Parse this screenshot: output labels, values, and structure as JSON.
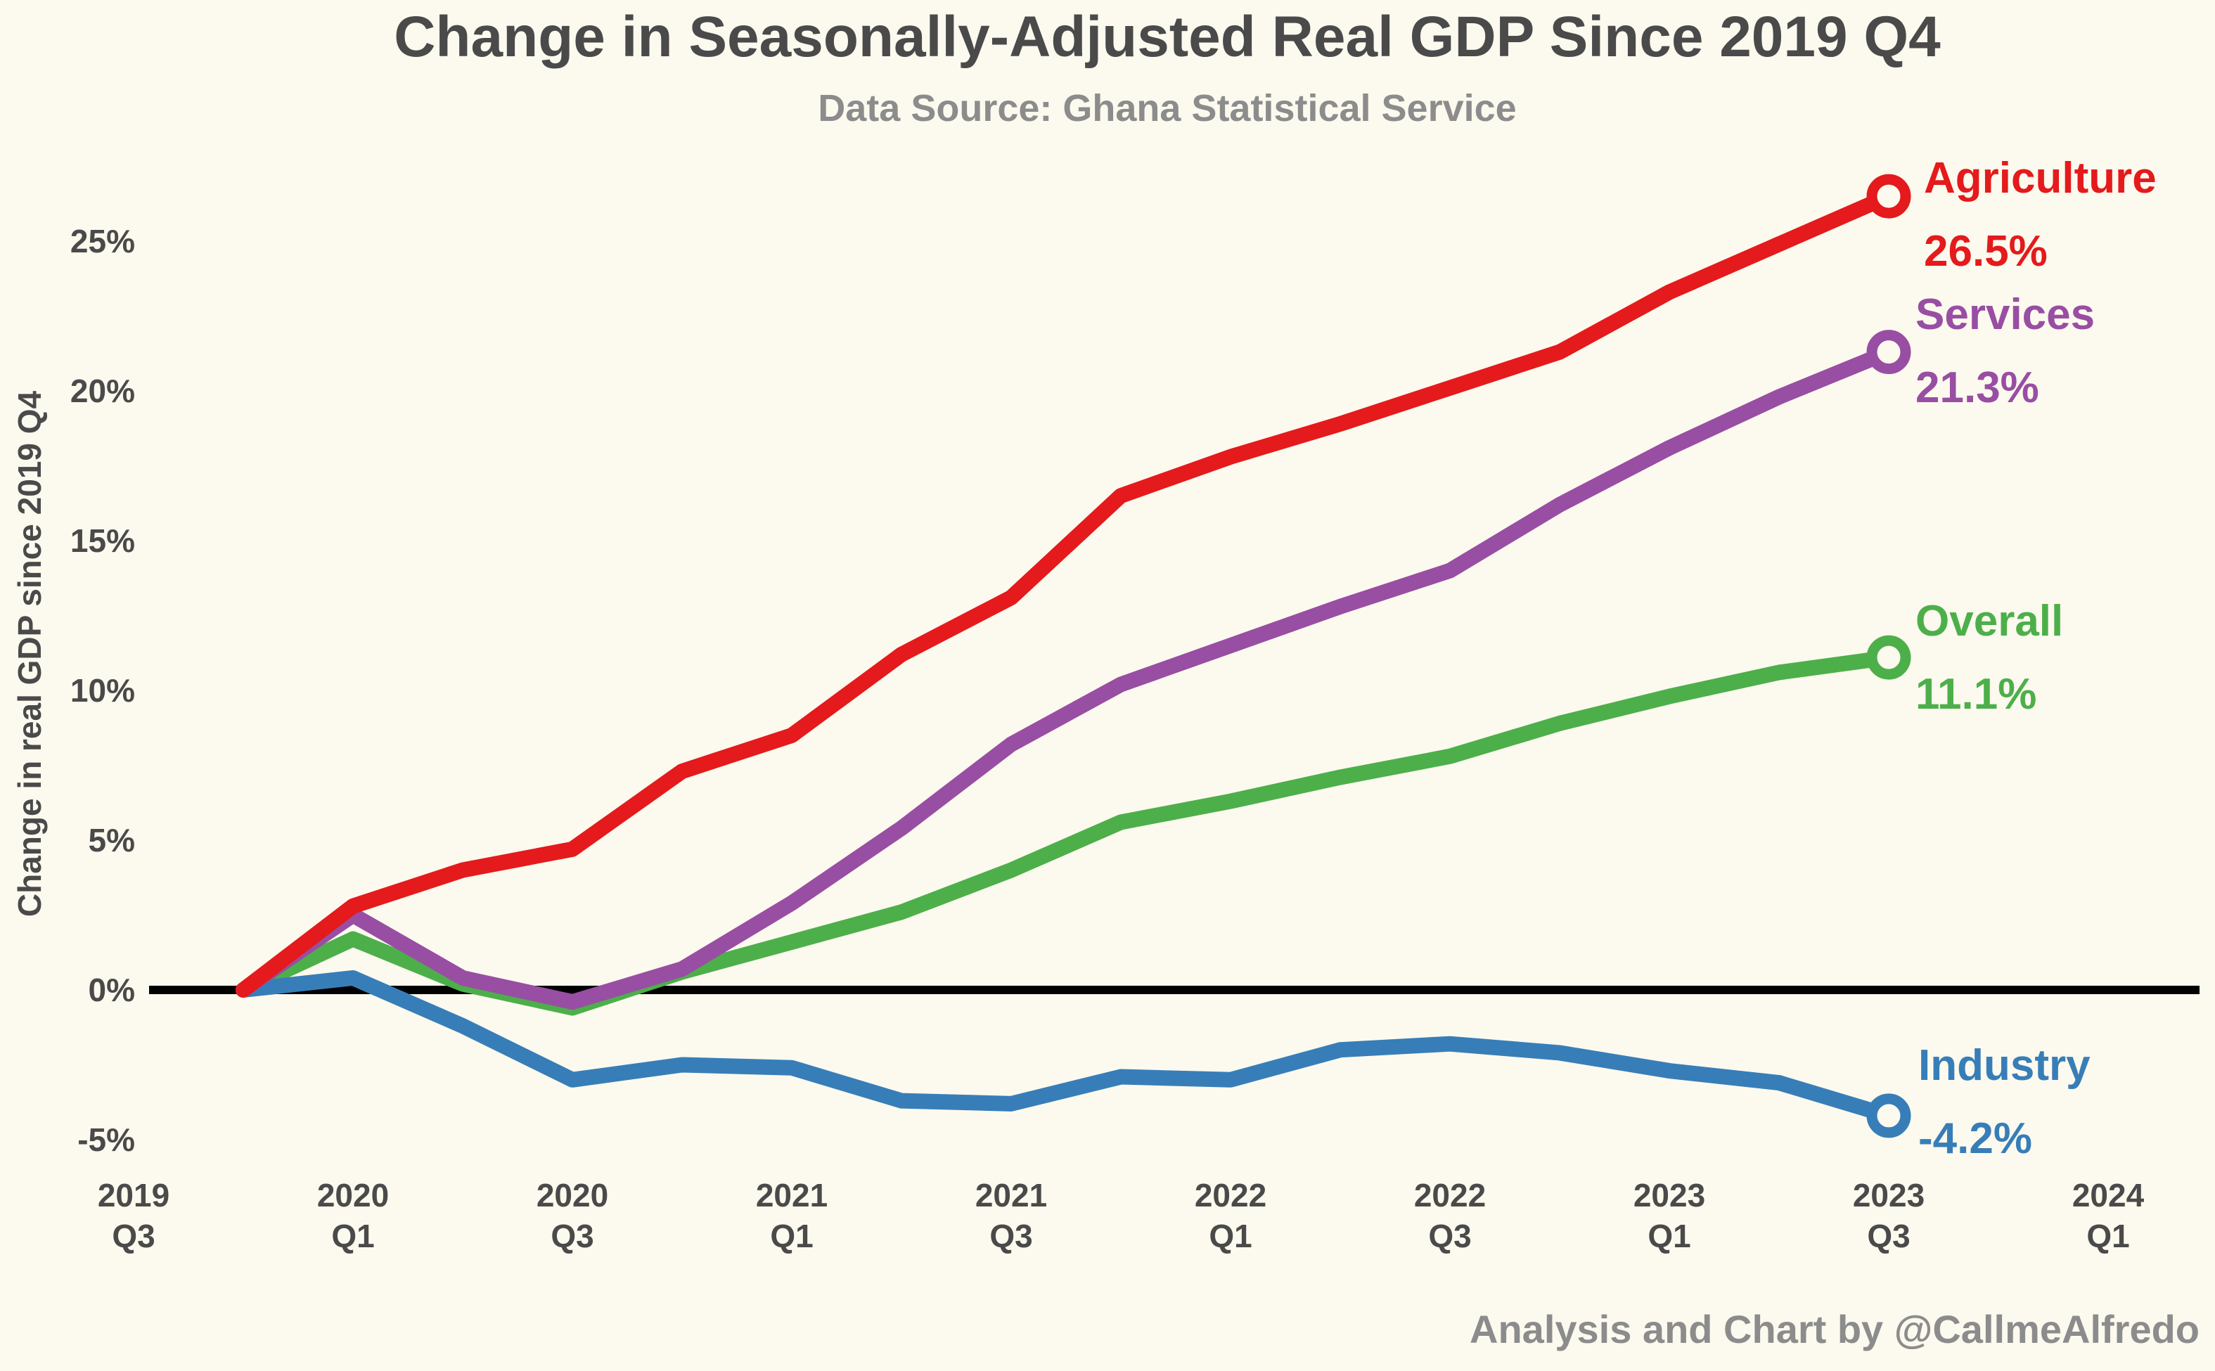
{
  "chart_data": {
    "type": "line",
    "title": "Change in Seasonally-Adjusted Real GDP Since 2019 Q4",
    "subtitle": "Data Source: Ghana Statistical Service",
    "ylabel": "Change in real GDP since 2019 Q4",
    "xlabel": "",
    "credit": "Analysis and Chart by @CallmeAlfredo",
    "ylim": [
      -5.5,
      28
    ],
    "yticks": [
      -5,
      0,
      5,
      10,
      15,
      20,
      25
    ],
    "ytick_labels": [
      "-5%",
      "0%",
      "5%",
      "10%",
      "15%",
      "20%",
      "25%"
    ],
    "x_range": [
      "2019 Q3",
      "2024 Q1"
    ],
    "xtick_labels": [
      [
        "2019",
        "Q3"
      ],
      [
        "2020",
        "Q1"
      ],
      [
        "2020",
        "Q3"
      ],
      [
        "2021",
        "Q1"
      ],
      [
        "2021",
        "Q3"
      ],
      [
        "2022",
        "Q1"
      ],
      [
        "2022",
        "Q3"
      ],
      [
        "2023",
        "Q1"
      ],
      [
        "2023",
        "Q3"
      ],
      [
        "2024",
        "Q1"
      ]
    ],
    "categories": [
      "2019 Q4",
      "2020 Q1",
      "2020 Q2",
      "2020 Q3",
      "2020 Q4",
      "2021 Q1",
      "2021 Q2",
      "2021 Q3",
      "2021 Q4",
      "2022 Q1",
      "2022 Q2",
      "2022 Q3",
      "2022 Q4",
      "2023 Q1",
      "2023 Q2",
      "2023 Q3"
    ],
    "grid": false,
    "zero_line": true,
    "legend": "end-of-line labels",
    "series": [
      {
        "name": "Agriculture",
        "end_label": "26.5%",
        "color": "#e41a1c",
        "values": [
          0,
          2.8,
          4.0,
          4.7,
          7.3,
          8.5,
          11.2,
          13.1,
          16.5,
          17.8,
          18.9,
          20.1,
          21.3,
          23.3,
          24.9,
          26.5
        ]
      },
      {
        "name": "Services",
        "end_label": "21.3%",
        "color": "#984ea3",
        "values": [
          0,
          2.5,
          0.4,
          -0.4,
          0.7,
          2.9,
          5.4,
          8.2,
          10.2,
          11.5,
          12.8,
          14.0,
          16.2,
          18.1,
          19.8,
          21.3
        ]
      },
      {
        "name": "Overall",
        "end_label": "11.1%",
        "color": "#4daf4a",
        "values": [
          0,
          1.7,
          0.2,
          -0.6,
          0.6,
          1.6,
          2.6,
          4.0,
          5.6,
          6.3,
          7.1,
          7.8,
          8.9,
          9.8,
          10.6,
          11.1
        ]
      },
      {
        "name": "Industry",
        "end_label": "-4.2%",
        "color": "#377eb8",
        "values": [
          0,
          0.4,
          -1.2,
          -3.0,
          -2.5,
          -2.6,
          -3.7,
          -3.8,
          -2.9,
          -3.0,
          -2.0,
          -1.8,
          -2.1,
          -2.7,
          -3.1,
          -4.2
        ]
      }
    ]
  }
}
